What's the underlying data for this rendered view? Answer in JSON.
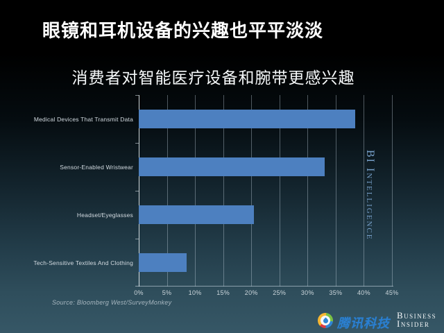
{
  "header": {
    "title": "眼镜和耳机设备的兴趣也平平淡淡"
  },
  "chart": {
    "source": "Source: Bloomberg West/SurveyMonkey",
    "watermark": "BI Intelligence",
    "bar_color": "#4d80c0",
    "background_top": "#000000",
    "background_bottom": "#365766"
  },
  "chart_data": {
    "type": "bar",
    "orientation": "horizontal",
    "title": "消费者对智能医疗设备和腕带更感兴趣",
    "categories": [
      "Medical Devices That Transmit Data",
      "Sensor-Enabled Wristwear",
      "Headset/Eyeglasses",
      "Tech-Sensitive Textiles And Clothing"
    ],
    "values": [
      38.5,
      33,
      20.5,
      8.5
    ],
    "x_ticks": [
      "0%",
      "5%",
      "10%",
      "15%",
      "20%",
      "25%",
      "30%",
      "35%",
      "40%",
      "45%"
    ],
    "tick_values": [
      0,
      5,
      10,
      15,
      20,
      25,
      30,
      35,
      40,
      45
    ],
    "xlim": [
      0,
      45
    ],
    "grid": true,
    "legend": false,
    "source": "Source: Bloomberg West/SurveyMonkey"
  },
  "footer": {
    "tencent_logo": "tencent-tech-logo",
    "tencent_text": "腾讯科技",
    "bi_line1": "Business",
    "bi_line2": "Insider"
  }
}
